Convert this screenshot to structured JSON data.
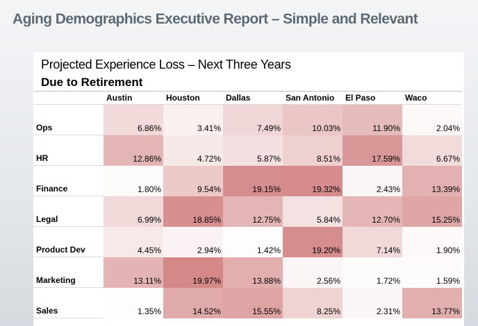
{
  "header": {
    "title": "Aging Demographics Executive Report – Simple and Relevant"
  },
  "chart_data": {
    "type": "heatmap",
    "title": "Projected Experience Loss – Next Three Years",
    "subtitle": "Due to Retirement",
    "columns": [
      "Austin",
      "Houston",
      "Dallas",
      "San Antonio",
      "El Paso",
      "Waco"
    ],
    "rows": [
      "Ops",
      "HR",
      "Finance",
      "Legal",
      "Product Dev",
      "Marketing",
      "Sales"
    ],
    "values": [
      [
        "6.86%",
        "3.41%",
        "7.49%",
        "10.03%",
        "11.90%",
        "2.04%"
      ],
      [
        "12.86%",
        "4.72%",
        "5.87%",
        "8.51%",
        "17.59%",
        "6.67%"
      ],
      [
        "1.80%",
        "9.54%",
        "19.15%",
        "19.32%",
        "2.43%",
        "13.39%"
      ],
      [
        "6.99%",
        "18.85%",
        "12.75%",
        "5.84%",
        "12.70%",
        "15.25%"
      ],
      [
        "4.45%",
        "2.94%",
        "1.42%",
        "19.20%",
        "7.14%",
        "1.90%"
      ],
      [
        "13.11%",
        "19.97%",
        "13.88%",
        "2.56%",
        "1.72%",
        "1.59%"
      ],
      [
        "1.35%",
        "14.52%",
        "15.55%",
        "8.25%",
        "2.31%",
        "13.77%"
      ]
    ],
    "color_scale": {
      "low": "#ffffff",
      "high": "#d48888",
      "min": 1,
      "max": 20
    }
  }
}
